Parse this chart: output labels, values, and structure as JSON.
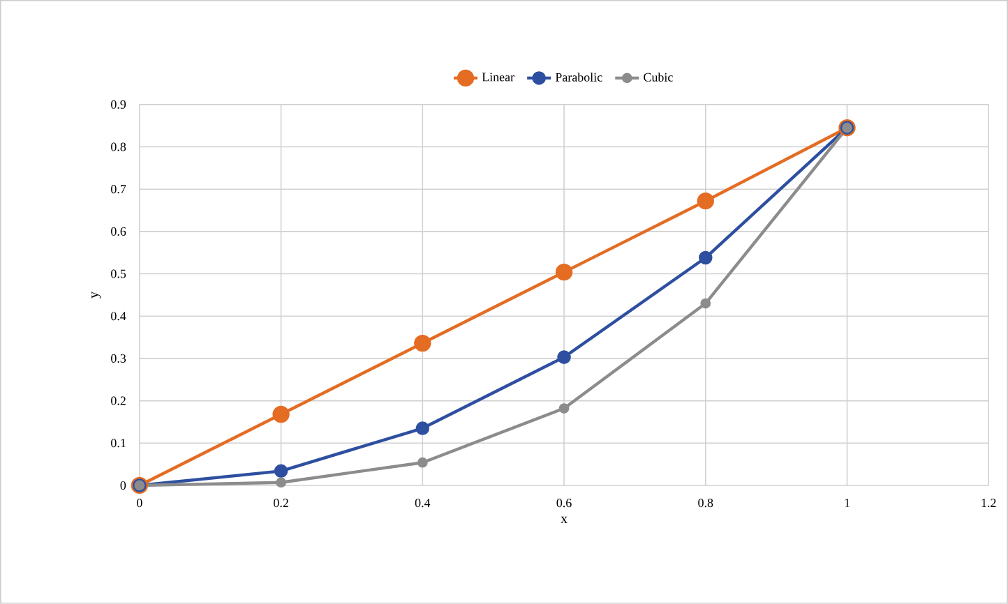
{
  "chart_data": {
    "type": "line",
    "xlabel": "x",
    "ylabel": "y",
    "xlim": [
      0,
      1.2
    ],
    "ylim": [
      0,
      0.9
    ],
    "xticks": [
      0,
      0.2,
      0.4,
      0.6,
      0.8,
      1,
      1.2
    ],
    "yticks": [
      0,
      0.1,
      0.2,
      0.3,
      0.4,
      0.5,
      0.6,
      0.7,
      0.8,
      0.9
    ],
    "grid": true,
    "legend": "top",
    "marker": "circle",
    "line_style": "solid",
    "x": [
      0,
      0.2,
      0.4,
      0.6,
      0.8,
      1
    ],
    "series": [
      {
        "name": "Linear",
        "color": "#e46c23",
        "values": [
          0,
          0.168,
          0.336,
          0.504,
          0.672,
          0.845
        ]
      },
      {
        "name": "Parabolic",
        "color": "#2e4fa0",
        "values": [
          0,
          0.034,
          0.135,
          0.303,
          0.538,
          0.845
        ]
      },
      {
        "name": "Cubic",
        "color": "#8c8c8c",
        "values": [
          0,
          0.007,
          0.054,
          0.182,
          0.43,
          0.845
        ]
      }
    ]
  }
}
